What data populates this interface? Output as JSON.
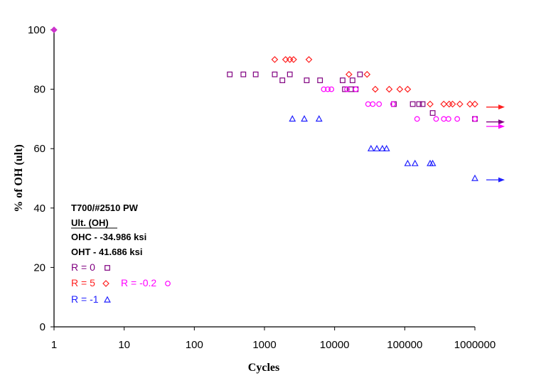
{
  "chart_data": {
    "type": "scatter",
    "title": "",
    "xlabel": "Cycles",
    "ylabel": "% of OH (ult)",
    "x_scale": "log",
    "xlim": [
      1,
      1000000
    ],
    "ylim": [
      0,
      100
    ],
    "x_ticks": [
      "1",
      "10",
      "100",
      "1000",
      "10000",
      "100000",
      "1000000"
    ],
    "y_ticks": [
      "0",
      "20",
      "40",
      "60",
      "80",
      "100"
    ],
    "grid": false,
    "legend": {
      "lines": [
        "T700/#2510 PW",
        "Ult. (OH)",
        "OHC - -34.986 ksi",
        "OHT - 41.686 ksi"
      ],
      "placement": "lower-left"
    },
    "static_point": {
      "x": 1,
      "y": 100,
      "color": "#cc33cc"
    },
    "series": [
      {
        "name": "R = 0",
        "color": "#800080",
        "marker": "square",
        "points": [
          [
            320,
            85
          ],
          [
            500,
            85
          ],
          [
            750,
            85
          ],
          [
            1400,
            85
          ],
          [
            1800,
            83
          ],
          [
            2300,
            85
          ],
          [
            4000,
            83
          ],
          [
            6200,
            83
          ],
          [
            13000,
            83
          ],
          [
            14000,
            80
          ],
          [
            17000,
            80
          ],
          [
            18000,
            83
          ],
          [
            20000,
            80
          ],
          [
            23000,
            85
          ],
          [
            70000,
            75
          ],
          [
            130000,
            75
          ],
          [
            160000,
            75
          ],
          [
            180000,
            75
          ],
          [
            250000,
            72
          ],
          [
            1000000,
            70
          ]
        ],
        "runout_y": 69
      },
      {
        "name": "R = 5",
        "color": "#ff2020",
        "marker": "diamond",
        "points": [
          [
            1400,
            90
          ],
          [
            2000,
            90
          ],
          [
            2300,
            90
          ],
          [
            2600,
            90
          ],
          [
            4300,
            90
          ],
          [
            16000,
            85
          ],
          [
            29000,
            85
          ],
          [
            38000,
            80
          ],
          [
            60000,
            80
          ],
          [
            85000,
            80
          ],
          [
            110000,
            80
          ],
          [
            230000,
            75
          ],
          [
            360000,
            75
          ],
          [
            430000,
            75
          ],
          [
            480000,
            75
          ],
          [
            610000,
            75
          ],
          [
            850000,
            75
          ],
          [
            1000000,
            75
          ]
        ],
        "runout_y": 74
      },
      {
        "name": "R = -0.2",
        "color": "#ff00ff",
        "marker": "circle",
        "points": [
          [
            7000,
            80
          ],
          [
            8000,
            80
          ],
          [
            9000,
            80
          ],
          [
            15000,
            80
          ],
          [
            20000,
            80
          ],
          [
            30000,
            75
          ],
          [
            35000,
            75
          ],
          [
            43000,
            75
          ],
          [
            68000,
            75
          ],
          [
            150000,
            70
          ],
          [
            280000,
            70
          ],
          [
            360000,
            70
          ],
          [
            420000,
            70
          ],
          [
            560000,
            70
          ],
          [
            1000000,
            70
          ]
        ],
        "runout_y": 67.5
      },
      {
        "name": "R = -1",
        "color": "#2020ff",
        "marker": "triangle",
        "points": [
          [
            2500,
            70
          ],
          [
            3700,
            70
          ],
          [
            6000,
            70
          ],
          [
            33000,
            60
          ],
          [
            40000,
            60
          ],
          [
            48000,
            60
          ],
          [
            55000,
            60
          ],
          [
            110000,
            55
          ],
          [
            140000,
            55
          ],
          [
            230000,
            55
          ],
          [
            250000,
            55
          ],
          [
            1000000,
            50
          ]
        ],
        "runout_y": 49.5
      }
    ]
  }
}
